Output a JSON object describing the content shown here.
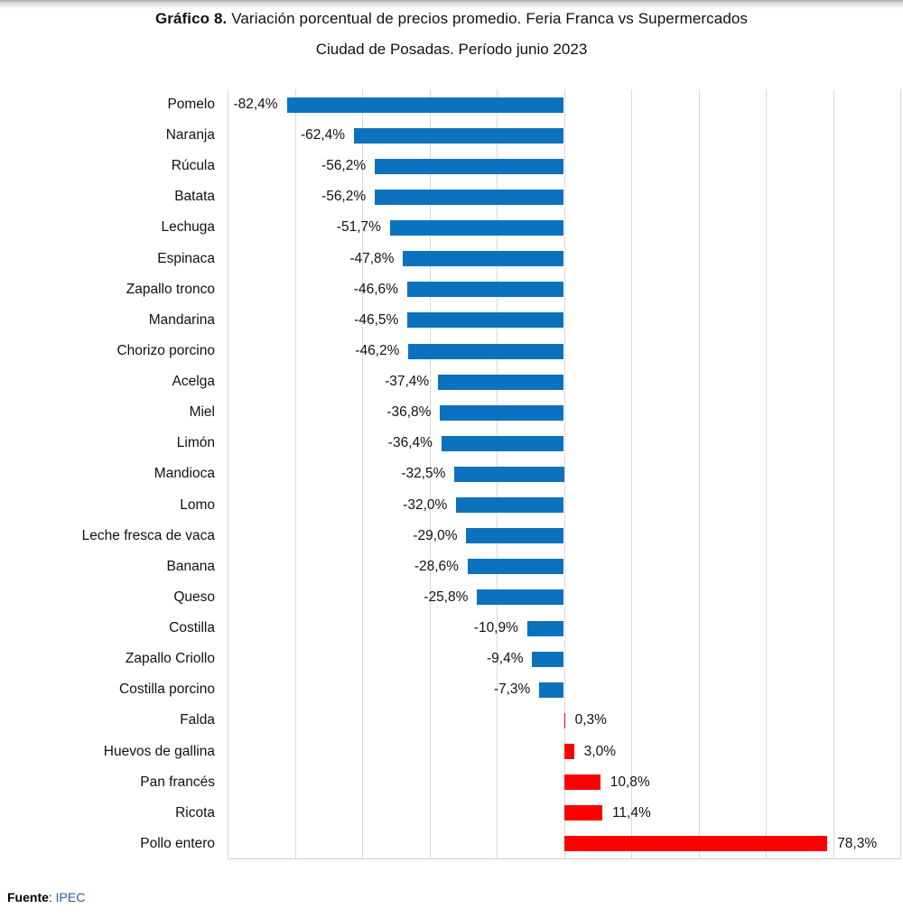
{
  "title": {
    "line1_bold": "Gráfico 8.",
    "line1_rest": " Variación porcentual de precios promedio. Feria Franca vs Supermercados",
    "line2": "Ciudad de Posadas. Período junio 2023"
  },
  "footer": {
    "source_label": "Fuente",
    "source_colon": ": ",
    "source_value": "IPEC"
  },
  "colors": {
    "negative_bar": "#0d72bd",
    "positive_bar": "#ff0000",
    "gridline": "#d9d9d9",
    "source_value_color": "#2e5f9e"
  },
  "chart_data": {
    "type": "bar",
    "orientation": "horizontal",
    "title": "Gráfico 8. Variación porcentual de precios promedio. Feria Franca vs Supermercados — Ciudad de Posadas. Período junio 2023",
    "xlabel": "",
    "ylabel": "",
    "xlim": [
      -100,
      100
    ],
    "grid_step": 20,
    "grid": true,
    "legend_position": "none",
    "categories": [
      "Pomelo",
      "Naranja",
      "Rúcula",
      "Batata",
      "Lechuga",
      "Espinaca",
      "Zapallo tronco",
      "Mandarina",
      "Chorizo porcino",
      "Acelga",
      "Miel",
      "Limón",
      "Mandioca",
      "Lomo",
      "Leche fresca de vaca",
      "Banana",
      "Queso",
      "Costilla",
      "Zapallo Criollo",
      "Costilla porcino",
      "Falda",
      "Huevos de gallina",
      "Pan francés",
      "Ricota",
      "Pollo entero"
    ],
    "values": [
      -82.4,
      -62.4,
      -56.2,
      -56.2,
      -51.7,
      -47.8,
      -46.6,
      -46.5,
      -46.2,
      -37.4,
      -36.8,
      -36.4,
      -32.5,
      -32.0,
      -29.0,
      -28.6,
      -25.8,
      -10.9,
      -9.4,
      -7.3,
      0.3,
      3.0,
      10.8,
      11.4,
      78.3
    ],
    "value_labels": [
      "-82,4%",
      "-62,4%",
      "-56,2%",
      "-56,2%",
      "-51,7%",
      "-47,8%",
      "-46,6%",
      "-46,5%",
      "-46,2%",
      "-37,4%",
      "-36,8%",
      "-36,4%",
      "-32,5%",
      "-32,0%",
      "-29,0%",
      "-28,6%",
      "-25,8%",
      "-10,9%",
      "-9,4%",
      "-7,3%",
      "0,3%",
      "3,0%",
      "10,8%",
      "11,4%",
      "78,3%"
    ]
  }
}
